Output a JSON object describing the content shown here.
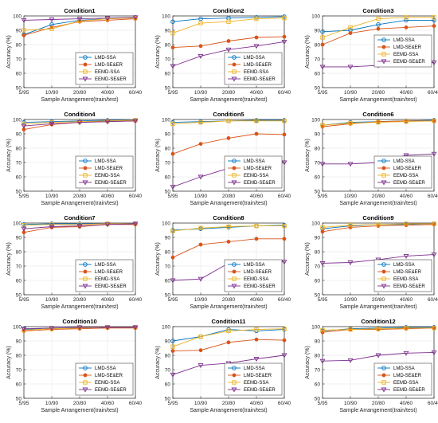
{
  "series_styles": [
    {
      "name": "LMD-SSA",
      "color": "#0072BD",
      "marker": "circle"
    },
    {
      "name": "LMD-SE&ER",
      "color": "#D95319",
      "marker": "filled-circle"
    },
    {
      "name": "EEMD-SSA",
      "color": "#EDB120",
      "marker": "square"
    },
    {
      "name": "EEMD-SE&ER",
      "color": "#7E2F8E",
      "marker": "triangle-down"
    }
  ],
  "chart_data": [
    {
      "type": "line",
      "title": "Condition1",
      "categories": [
        "5/95",
        "10/90",
        "20/80",
        "40/60",
        "60/40"
      ],
      "xlabel": "Sample Arrangement(train/test)",
      "ylabel": "Accuracy (%)",
      "ylim": [
        50,
        100
      ],
      "yticks": [
        50,
        60,
        70,
        80,
        90,
        100
      ],
      "grid": true,
      "legend_position": "bottom-right",
      "series": [
        {
          "name": "LMD-SSA",
          "values": [
            87,
            94,
            97,
            98,
            99
          ]
        },
        {
          "name": "LMD-SE&ER",
          "values": [
            86.5,
            92,
            96,
            97,
            98
          ]
        },
        {
          "name": "EEMD-SSA",
          "values": [
            90,
            91,
            96.5,
            98,
            98.5
          ]
        },
        {
          "name": "EEMD-SE&ER",
          "values": [
            97,
            97.5,
            98,
            98.5,
            99
          ]
        }
      ]
    },
    {
      "type": "line",
      "title": "Condition2",
      "categories": [
        "5/95",
        "10/90",
        "20/80",
        "40/60",
        "60/40"
      ],
      "xlabel": "Sample Arrangement(train/test)",
      "ylabel": "Accuracy (%)",
      "ylim": [
        50,
        100
      ],
      "yticks": [
        50,
        60,
        70,
        80,
        90,
        100
      ],
      "grid": true,
      "legend_position": "bottom-right",
      "series": [
        {
          "name": "LMD-SSA",
          "values": [
            96,
            98,
            98.5,
            99,
            99.5
          ]
        },
        {
          "name": "LMD-SE&ER",
          "values": [
            78,
            79,
            82.5,
            85,
            85.5
          ]
        },
        {
          "name": "EEMD-SSA",
          "values": [
            88,
            95,
            96,
            98,
            98.5
          ]
        },
        {
          "name": "EEMD-SE&ER",
          "values": [
            65,
            72,
            76.5,
            79,
            82
          ]
        }
      ]
    },
    {
      "type": "line",
      "title": "Condition3",
      "categories": [
        "5/95",
        "10/90",
        "20/80",
        "40/60",
        "60/40"
      ],
      "xlabel": "Sample Arrangement(train/test)",
      "ylabel": "Accuracy (%)",
      "ylim": [
        50,
        100
      ],
      "yticks": [
        50,
        60,
        70,
        80,
        90,
        100
      ],
      "grid": true,
      "legend_position": "top-right",
      "series": [
        {
          "name": "LMD-SSA",
          "values": [
            89,
            90,
            94,
            97,
            97
          ]
        },
        {
          "name": "LMD-SE&ER",
          "values": [
            80,
            88,
            91,
            92,
            93
          ]
        },
        {
          "name": "EEMD-SSA",
          "values": [
            85,
            92,
            98,
            99,
            99
          ]
        },
        {
          "name": "EEMD-SE&ER",
          "values": [
            64.5,
            64.5,
            65.5,
            67,
            67.5
          ]
        }
      ]
    },
    {
      "type": "line",
      "title": "Condition4",
      "categories": [
        "5/95",
        "10/90",
        "20/80",
        "40/60",
        "60/40"
      ],
      "xlabel": "Sample Arrangement(train/test)",
      "ylabel": "Accuracy (%)",
      "ylim": [
        50,
        100
      ],
      "yticks": [
        50,
        60,
        70,
        80,
        90,
        100
      ],
      "grid": true,
      "legend_position": "bottom-right",
      "series": [
        {
          "name": "LMD-SSA",
          "values": [
            98,
            98.5,
            99,
            99.5,
            99.5
          ]
        },
        {
          "name": "LMD-SE&ER",
          "values": [
            93,
            96.5,
            98,
            98.5,
            99
          ]
        },
        {
          "name": "EEMD-SSA",
          "values": [
            97,
            98,
            98.5,
            99,
            99.5
          ]
        },
        {
          "name": "EEMD-SE&ER",
          "values": [
            95.5,
            97,
            98,
            98.5,
            99
          ]
        }
      ]
    },
    {
      "type": "line",
      "title": "Condition5",
      "categories": [
        "5/95",
        "10/90",
        "20/80",
        "40/60",
        "60/40"
      ],
      "xlabel": "Sample Arrangement(train/test)",
      "ylabel": "Accuracy (%)",
      "ylim": [
        50,
        100
      ],
      "yticks": [
        50,
        60,
        70,
        80,
        90,
        100
      ],
      "grid": true,
      "legend_position": "bottom-right",
      "series": [
        {
          "name": "LMD-SSA",
          "values": [
            98,
            98.5,
            99,
            99.5,
            99.5
          ]
        },
        {
          "name": "LMD-SE&ER",
          "values": [
            76,
            83,
            87,
            90,
            89.5
          ]
        },
        {
          "name": "EEMD-SSA",
          "values": [
            97,
            98,
            99,
            99,
            99
          ]
        },
        {
          "name": "EEMD-SE&ER",
          "values": [
            53,
            60,
            66,
            68,
            70
          ]
        }
      ]
    },
    {
      "type": "line",
      "title": "Condition6",
      "categories": [
        "5/95",
        "10/90",
        "20/80",
        "40/60",
        "60/40"
      ],
      "xlabel": "Sample Arrangement(train/test)",
      "ylabel": "Accuracy (%)",
      "ylim": [
        50,
        100
      ],
      "yticks": [
        50,
        60,
        70,
        80,
        90,
        100
      ],
      "grid": true,
      "legend_position": "bottom-right",
      "series": [
        {
          "name": "LMD-SSA",
          "values": [
            96,
            98,
            98.5,
            99,
            99.5
          ]
        },
        {
          "name": "LMD-SE&ER",
          "values": [
            95,
            97,
            98.5,
            99,
            99
          ]
        },
        {
          "name": "EEMD-SSA",
          "values": [
            96,
            97.5,
            98,
            98.5,
            99
          ]
        },
        {
          "name": "EEMD-SE&ER",
          "values": [
            69,
            69,
            70,
            75,
            76
          ]
        }
      ]
    },
    {
      "type": "line",
      "title": "Condition7",
      "categories": [
        "5/95",
        "10/90",
        "20/80",
        "40/60",
        "60/40"
      ],
      "xlabel": "Sample Arrangement(train/test)",
      "ylabel": "Accuracy (%)",
      "ylim": [
        50,
        100
      ],
      "yticks": [
        50,
        60,
        70,
        80,
        90,
        100
      ],
      "grid": true,
      "legend_position": "bottom-right",
      "series": [
        {
          "name": "LMD-SSA",
          "values": [
            99,
            99.5,
            99.5,
            99.5,
            99.5
          ]
        },
        {
          "name": "LMD-SE&ER",
          "values": [
            93.5,
            97,
            97.5,
            99,
            99
          ]
        },
        {
          "name": "EEMD-SSA",
          "values": [
            98.5,
            99,
            99,
            99.5,
            99.5
          ]
        },
        {
          "name": "EEMD-SE&ER",
          "values": [
            96,
            97.5,
            98,
            99,
            99.5
          ]
        }
      ]
    },
    {
      "type": "line",
      "title": "Condition8",
      "categories": [
        "5/95",
        "10/90",
        "20/80",
        "40/60",
        "60/40"
      ],
      "xlabel": "Sample Arrangement(train/test)",
      "ylabel": "Accuracy (%)",
      "ylim": [
        50,
        100
      ],
      "yticks": [
        50,
        60,
        70,
        80,
        90,
        100
      ],
      "grid": true,
      "legend_position": "bottom-right",
      "series": [
        {
          "name": "LMD-SSA",
          "values": [
            95,
            96,
            97,
            98,
            98.5
          ]
        },
        {
          "name": "LMD-SE&ER",
          "values": [
            76,
            85,
            87,
            89,
            89
          ]
        },
        {
          "name": "EEMD-SSA",
          "values": [
            94.5,
            96.5,
            97.5,
            98,
            98
          ]
        },
        {
          "name": "EEMD-SE&ER",
          "values": [
            60,
            61,
            72,
            71.5,
            73
          ]
        }
      ]
    },
    {
      "type": "line",
      "title": "Condition9",
      "categories": [
        "5/95",
        "10/90",
        "20/80",
        "40/60",
        "60/40"
      ],
      "xlabel": "Sample Arrangement(train/test)",
      "ylabel": "Accuracy (%)",
      "ylim": [
        50,
        100
      ],
      "yticks": [
        50,
        60,
        70,
        80,
        90,
        100
      ],
      "grid": true,
      "legend_position": "bottom-right",
      "series": [
        {
          "name": "LMD-SSA",
          "values": [
            96,
            98,
            99,
            99,
            99.5
          ]
        },
        {
          "name": "LMD-SE&ER",
          "values": [
            94,
            97,
            98,
            98.5,
            99
          ]
        },
        {
          "name": "EEMD-SSA",
          "values": [
            97,
            98.5,
            99,
            99.5,
            99.5
          ]
        },
        {
          "name": "EEMD-SE&ER",
          "values": [
            72,
            72.5,
            74.5,
            77,
            78
          ]
        }
      ]
    },
    {
      "type": "line",
      "title": "Condition10",
      "categories": [
        "5/95",
        "10/90",
        "20/80",
        "40/60",
        "60/40"
      ],
      "xlabel": "Sample Arrangement(train/test)",
      "ylabel": "Accuracy (%)",
      "ylim": [
        50,
        100
      ],
      "yticks": [
        50,
        60,
        70,
        80,
        90,
        100
      ],
      "grid": true,
      "legend_position": "bottom-right",
      "series": [
        {
          "name": "LMD-SSA",
          "values": [
            98,
            99,
            99.5,
            99.5,
            99.5
          ]
        },
        {
          "name": "LMD-SE&ER",
          "values": [
            97,
            98,
            98.5,
            99,
            99
          ]
        },
        {
          "name": "EEMD-SSA",
          "values": [
            97.5,
            98.5,
            99,
            99.5,
            99.5
          ]
        },
        {
          "name": "EEMD-SE&ER",
          "values": [
            98.5,
            99,
            99.5,
            99.5,
            99.5
          ]
        }
      ]
    },
    {
      "type": "line",
      "title": "Condition11",
      "categories": [
        "5/95",
        "10/90",
        "20/80",
        "40/60",
        "60/40"
      ],
      "xlabel": "Sample Arrangement(train/test)",
      "ylabel": "Accuracy (%)",
      "ylim": [
        50,
        100
      ],
      "yticks": [
        50,
        60,
        70,
        80,
        90,
        100
      ],
      "grid": true,
      "legend_position": "bottom-right",
      "series": [
        {
          "name": "LMD-SSA",
          "values": [
            90,
            93,
            98,
            97,
            98
          ]
        },
        {
          "name": "LMD-SE&ER",
          "values": [
            83,
            83.5,
            89,
            91,
            90.5
          ]
        },
        {
          "name": "EEMD-SSA",
          "values": [
            86,
            93,
            97,
            98,
            98.5
          ]
        },
        {
          "name": "EEMD-SE&ER",
          "values": [
            66.5,
            73,
            74.5,
            77.5,
            80
          ]
        }
      ]
    },
    {
      "type": "line",
      "title": "Condition12",
      "categories": [
        "5/95",
        "10/90",
        "20/80",
        "40/60",
        "60/40"
      ],
      "xlabel": "Sample Arrangement(train/test)",
      "ylabel": "Accuracy (%)",
      "ylim": [
        50,
        100
      ],
      "yticks": [
        50,
        60,
        70,
        80,
        90,
        100
      ],
      "grid": true,
      "legend_position": "bottom-right",
      "series": [
        {
          "name": "LMD-SSA",
          "values": [
            97,
            98.5,
            99,
            99.5,
            99.5
          ]
        },
        {
          "name": "LMD-SE&ER",
          "values": [
            96,
            98,
            98,
            98.5,
            99
          ]
        },
        {
          "name": "EEMD-SSA",
          "values": [
            97.5,
            98,
            98.5,
            99,
            99
          ]
        },
        {
          "name": "EEMD-SE&ER",
          "values": [
            76,
            76.5,
            80,
            81.5,
            82
          ]
        }
      ]
    }
  ]
}
